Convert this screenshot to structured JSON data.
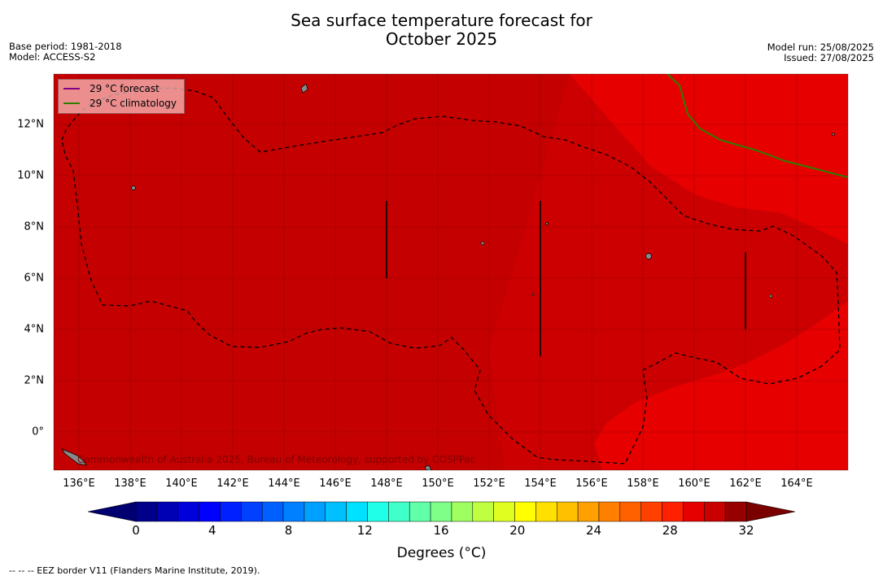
{
  "title": {
    "line1": "Sea surface temperature forecast for",
    "line2": "October 2025"
  },
  "meta": {
    "base_period": "Base period: 1981-2018",
    "model": "Model: ACCESS-S2",
    "model_run": "Model run: 25/08/2025",
    "issued": "Issued: 27/08/2025"
  },
  "legend": {
    "forecast_label": "29 °C  forecast",
    "forecast_color": "#800080",
    "climatology_label": "29 °C  climatology",
    "climatology_color": "#2e7d00"
  },
  "watermark": "Commonwealth of Australia 2025, Bureau of Meteorology, supported by COSPPac",
  "x_ticks": [
    "136°E",
    "138°E",
    "140°E",
    "142°E",
    "144°E",
    "146°E",
    "148°E",
    "150°E",
    "152°E",
    "154°E",
    "156°E",
    "158°E",
    "160°E",
    "162°E",
    "164°E"
  ],
  "y_ticks": [
    "0°",
    "2°N",
    "4°N",
    "6°N",
    "8°N",
    "10°N",
    "12°N"
  ],
  "colorbar": {
    "title": "Degrees (°C)",
    "ticks": [
      "0",
      "4",
      "8",
      "12",
      "16",
      "20",
      "24",
      "28",
      "32"
    ],
    "colors": [
      "#00008b",
      "#0000b4",
      "#0000dc",
      "#0000ff",
      "#0020ff",
      "#0040ff",
      "#0060ff",
      "#0080ff",
      "#00a0ff",
      "#00c0ff",
      "#00e0ff",
      "#20ffe8",
      "#40ffc8",
      "#60ffa8",
      "#80ff88",
      "#a0ff60",
      "#c0ff40",
      "#e0ff20",
      "#ffff00",
      "#ffe000",
      "#ffc000",
      "#ffa000",
      "#ff8000",
      "#ff6000",
      "#ff4000",
      "#ff2000",
      "#e60000",
      "#c80000",
      "#960000"
    ],
    "under_color": "#000070",
    "over_color": "#7a0000"
  },
  "footnote": "--  --  -- EEZ border V11 (Flanders Marine Institute, 2019).",
  "colors": {
    "sst_31_plus": "#c40000",
    "sst_30_31": "#c40000",
    "sst_29_30": "#e60000",
    "grid": "#8a0000",
    "land": "#999999"
  }
}
